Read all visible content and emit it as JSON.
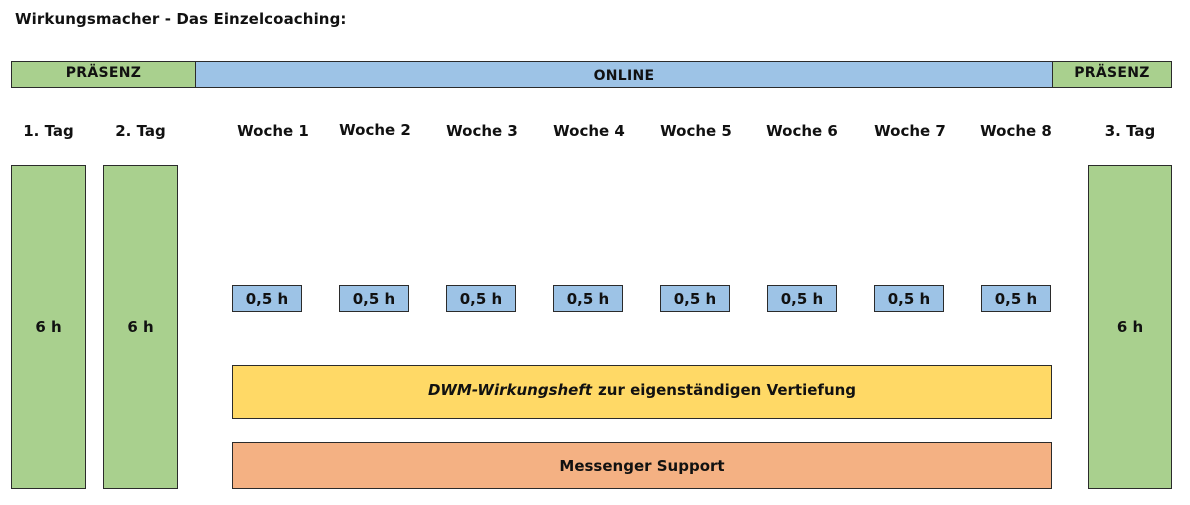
{
  "title": "Wirkungsmacher - Das Einzelcoaching:",
  "bands": {
    "left": "PRÄSENZ",
    "online": "ONLINE",
    "right": "PRÄSENZ"
  },
  "columns": {
    "day1": "1. Tag",
    "day2": "2. Tag",
    "weeks": [
      "Woche 1",
      "Woche 2",
      "Woche 3",
      "Woche 4",
      "Woche 5",
      "Woche 6",
      "Woche 7",
      "Woche 8"
    ],
    "day3": "3. Tag"
  },
  "day_blocks": {
    "day1": "6 h",
    "day2": "6 h",
    "day3": "6 h"
  },
  "sessions": [
    "0,5 h",
    "0,5 h",
    "0,5 h",
    "0,5 h",
    "0,5 h",
    "0,5 h",
    "0,5 h",
    "0,5 h"
  ],
  "workbook": {
    "emphasis": "DWM-Wirkungsheft",
    "rest": "zur eigenständigen Vertiefung"
  },
  "support": "Messenger Support",
  "colors": {
    "praesenz": "#a9d08e",
    "online": "#9dc3e6",
    "workbook": "#ffd966",
    "support": "#f4b183"
  }
}
